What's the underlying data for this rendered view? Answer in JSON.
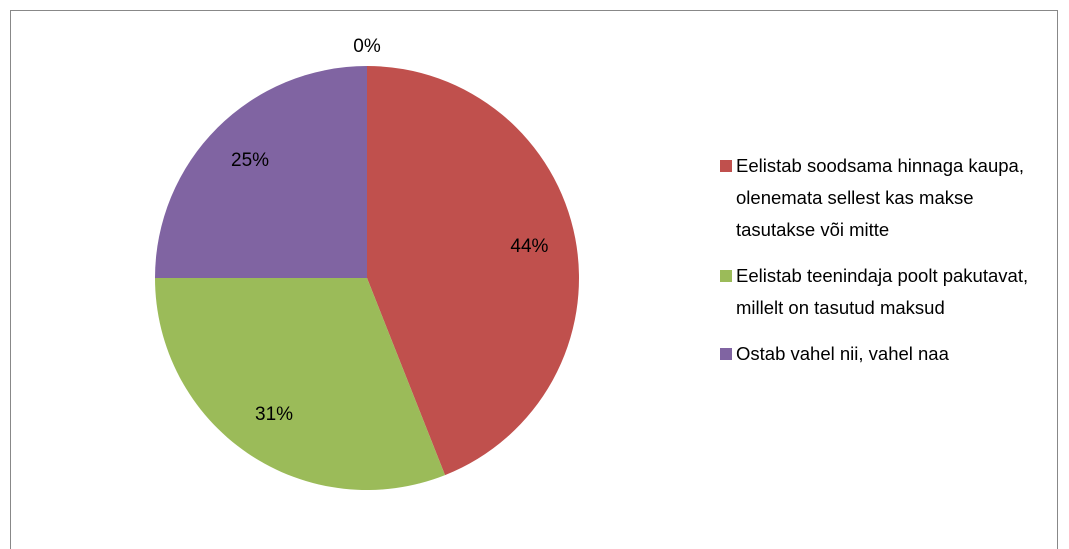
{
  "chart_data": {
    "type": "pie",
    "categories": [
      "Eelistab soodsama hinnaga kaupa, olenemata sellest kas makse tasutakse või mitte",
      "Eelistab teenindaja poolt pakutavat, millelt on tasutud maksud",
      "Ostab vahel nii, vahel naa",
      null
    ],
    "values": [
      44,
      31,
      25,
      0
    ],
    "value_labels": [
      "44%",
      "31%",
      "25%",
      "0%"
    ],
    "colors": [
      "#c0504d",
      "#9bbb59",
      "#8064a2",
      "#4bacc6"
    ],
    "legend": "right"
  }
}
